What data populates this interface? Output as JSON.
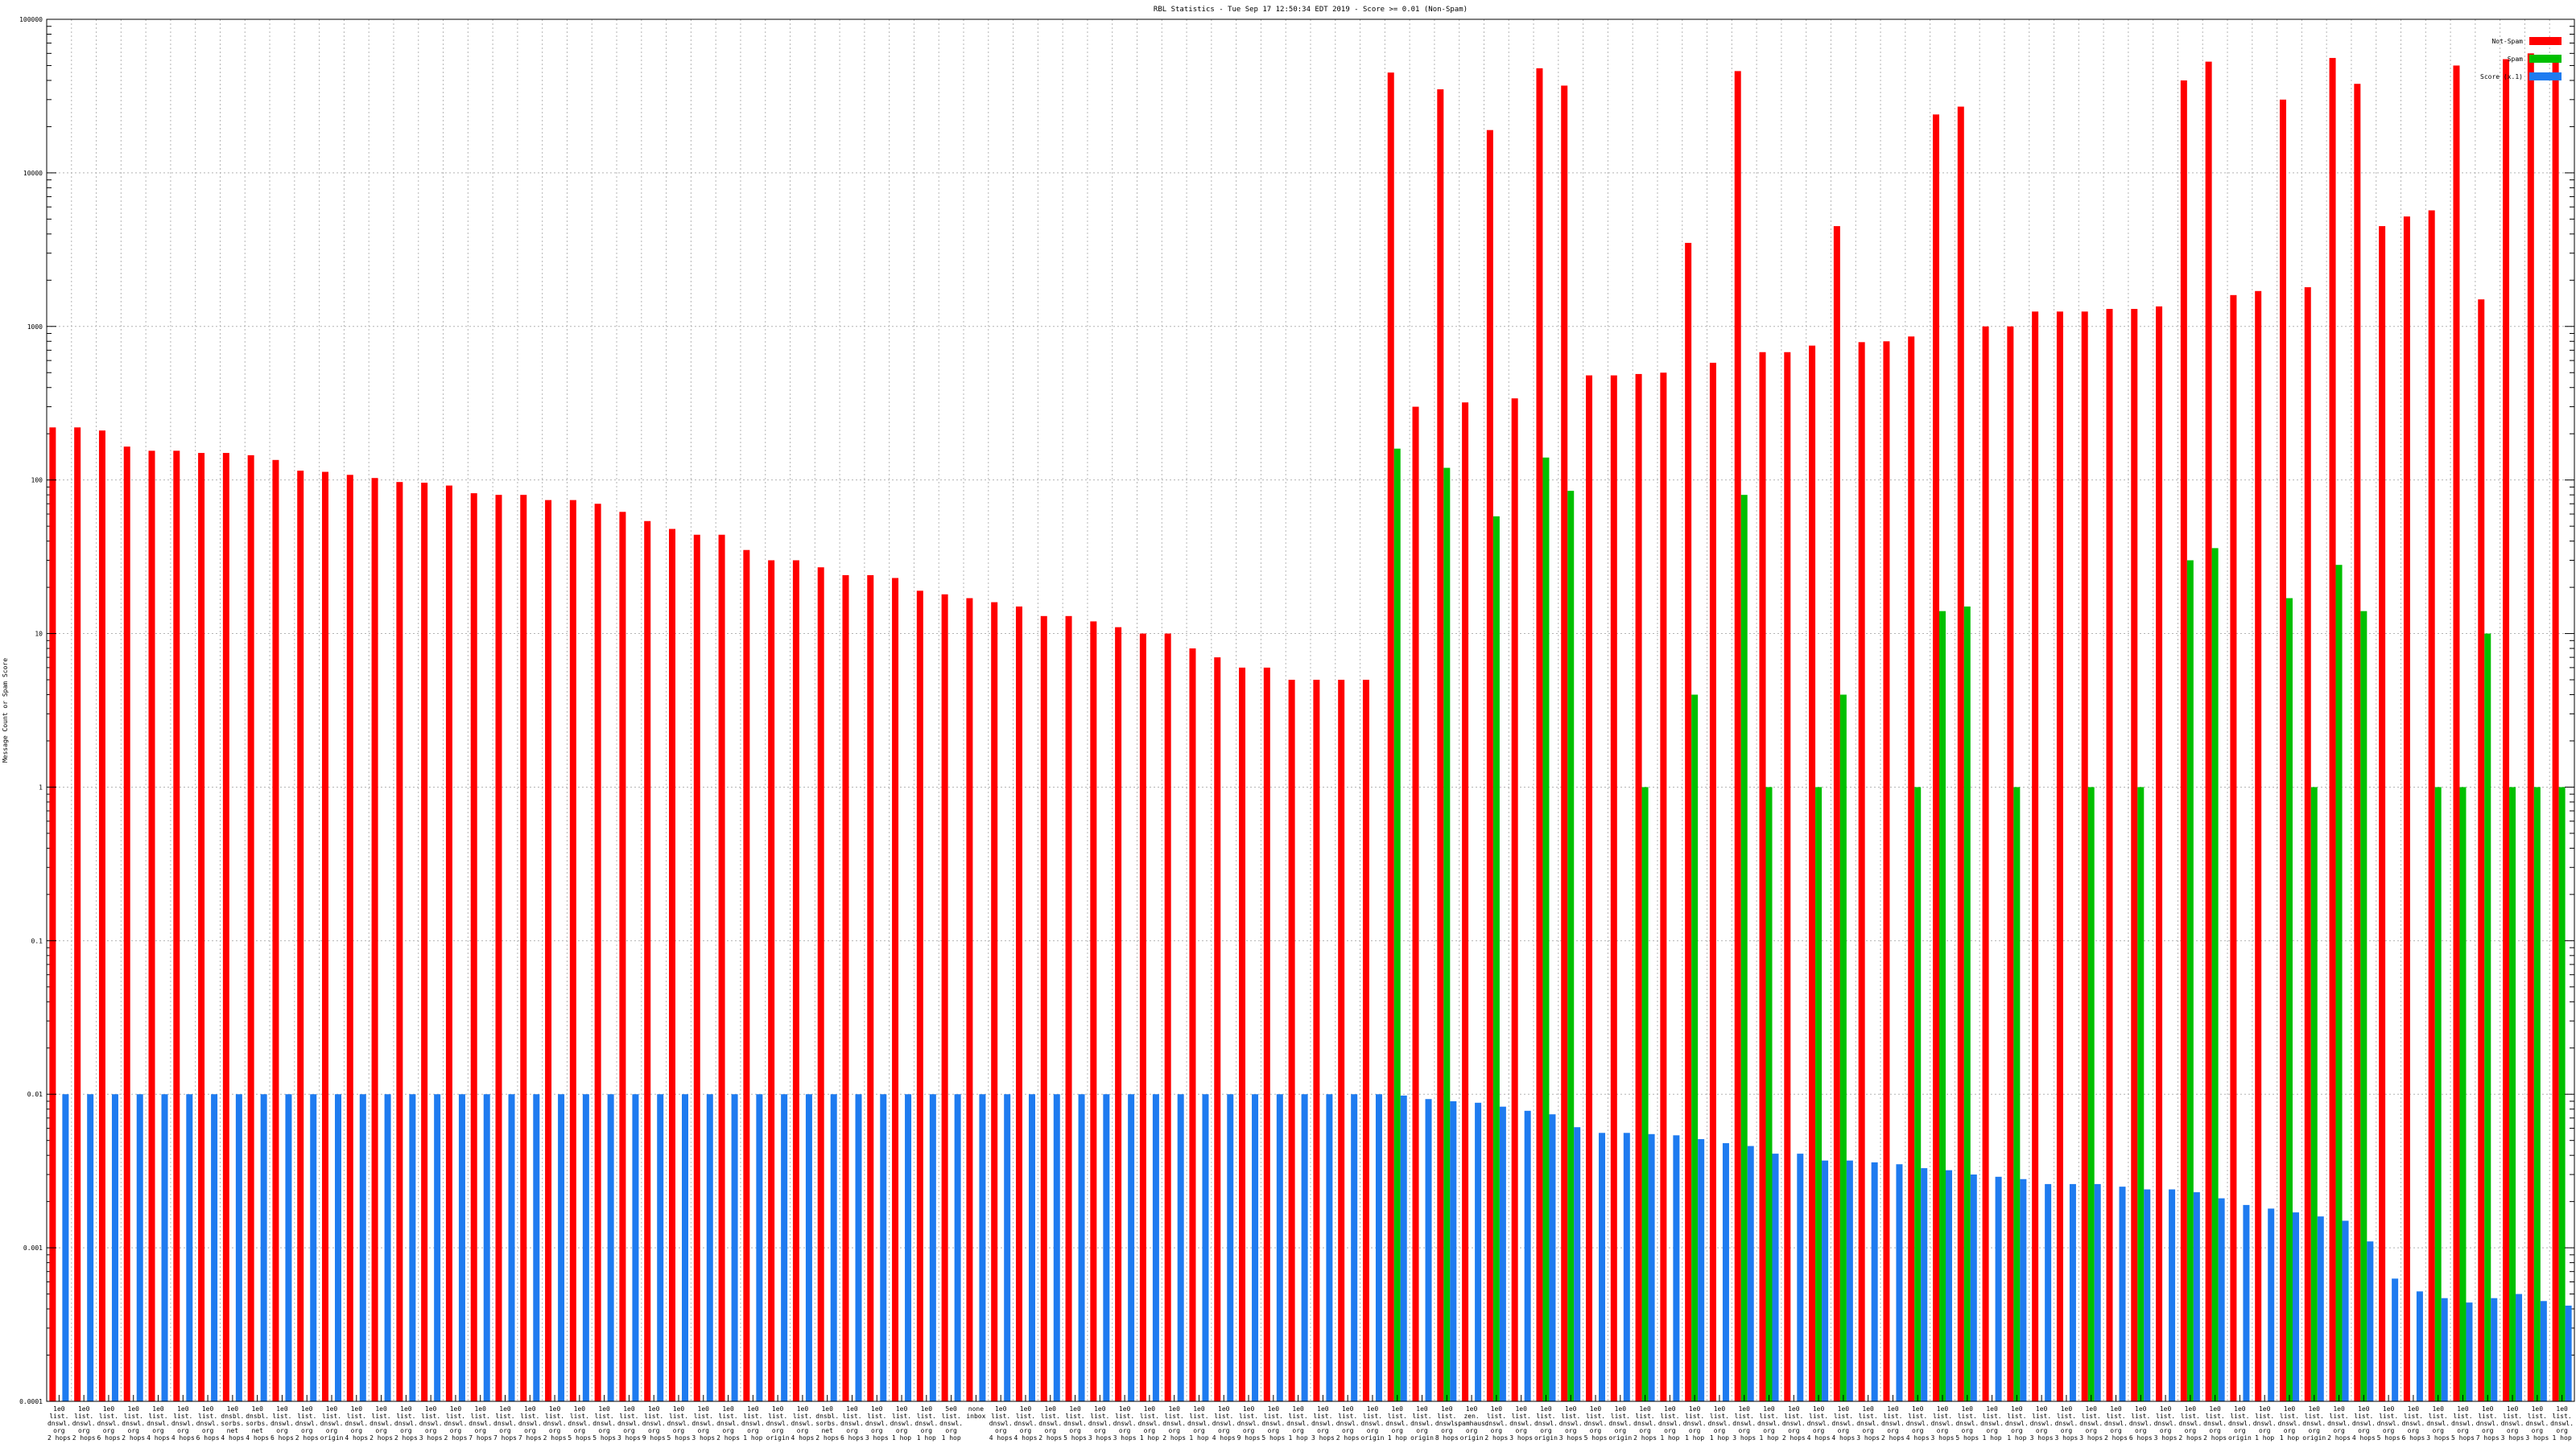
{
  "chart_data": {
    "type": "bar",
    "title": "RBL Statistics - Tue Sep 17 12:50:34 EDT 2019 - Score >= 0.01 (Non-Spam)",
    "xlabel": "",
    "ylabel": "Message Count or Spam Score",
    "yscale": "log",
    "ylim": [
      0.0001,
      100000
    ],
    "yticks": [
      0.0001,
      0.001,
      0.01,
      0.1,
      1,
      10,
      100,
      1000,
      10000,
      100000
    ],
    "ytick_labels": [
      "0.0001",
      "0.001",
      "0.01",
      "0.1",
      "1",
      "10",
      "100",
      "1000",
      "10000",
      "100000"
    ],
    "grid": true,
    "legend_position": "top-right",
    "colors": {
      "Not-Spam": "#ff0000",
      "Spam": "#00c000",
      "Score": "#1e7bf0"
    },
    "series_names": [
      "Not-Spam",
      "Spam",
      "Score (x.1)"
    ],
    "categories": [
      "1e0 list. dnswl. org 2 hops",
      "1e0 list. dnswl. org 2 hops",
      "1e0 list. dnswl. org 6 hops",
      "1e0 list. dnswl. org 2 hops",
      "1e0 list. dnswl. org 4 hops",
      "1e0 list. dnswl. org 4 hops",
      "1e0 list. dnswl. org 6 hops",
      "1e0 dnsbl. sorbs. net 4 hops",
      "1e0 dnsbl. sorbs. net 4 hops",
      "1e0 list. dnswl. org 6 hops",
      "1e0 list. dnswl. org 2 hops",
      "1e0 list. dnswl. org origin",
      "1e0 list. dnswl. org 4 hops",
      "1e0 list. dnswl. org 2 hops",
      "1e0 list. dnswl. org 2 hops",
      "1e0 list. dnswl. org 3 hops",
      "1e0 list. dnswl. org 2 hops",
      "1e0 list. dnswl. org 7 hops",
      "1e0 list. dnswl. org 7 hops",
      "1e0 list. dnswl. org 7 hops",
      "1e0 list. dnswl. org 2 hops",
      "1e0 list. dnswl. org 5 hops",
      "1e0 list. dnswl. org 5 hops",
      "1e0 list. dnswl. org 3 hops",
      "1e0 list. dnswl. org 9 hops",
      "1e0 list. dnswl. org 5 hops",
      "1e0 list. dnswl. org 3 hops",
      "1e0 list. dnswl. org 2 hops",
      "1e0 list. dnswl. org 1 hop",
      "1e0 list. dnswl. org origin",
      "1e0 list. dnswl. org 4 hops",
      "1e0 dnsbl. sorbs. net 2 hops",
      "1e0 list. dnswl. org 6 hops",
      "1e0 list. dnswl. org 3 hops",
      "1e0 list. dnswl. org 1 hop",
      "1e0 list. dnswl. org 1 hop",
      "5e0 list. dnswl. org 1 hop",
      "none inbox",
      "1e0 list. dnswl. org 4 hops",
      "1e0 list. dnswl. org 4 hops",
      "1e0 list. dnswl. org 2 hops",
      "1e0 list. dnswl. org 5 hops",
      "1e0 list. dnswl. org 3 hops",
      "1e0 list. dnswl. org 3 hops",
      "1e0 list. dnswl. org 1 hop",
      "1e0 list. dnswl. org 2 hops",
      "1e0 list. dnswl. org 1 hop",
      "1e0 list. dnswl. org 4 hops",
      "1e0 list. dnswl. org 9 hops",
      "1e0 list. dnswl. org 5 hops",
      "1e0 list. dnswl. org 1 hop",
      "1e0 list. dnswl. org 3 hops",
      "1e0 list. dnswl. org 2 hops",
      "1e0 list. dnswl. org origin",
      "1e0 list. dnswl. org 1 hop",
      "1e0 list. dnswl. org origin",
      "1e0 list. dnswl. org 8 hops",
      "1e0 zen. spamhaus. org origin",
      "1e0 list. dnswl. org 2 hops",
      "1e0 list. dnswl. org 3 hops",
      "1e0 list. dnswl. org origin",
      "1e0 list. dnswl. org 3 hops",
      "1e0 list. dnswl. org 5 hops",
      "1e0 list. dnswl. org origin",
      "1e0 list. dnswl. org 2 hops",
      "1e0 list. dnswl. org 1 hop",
      "1e0 list. dnswl. org 1 hop",
      "1e0 list. dnswl. org 1 hop",
      "1e0 list. dnswl. org 3 hops",
      "1e0 list. dnswl. org 1 hop",
      "1e0 list. dnswl. org 2 hops",
      "1e0 list. dnswl. org 4 hops",
      "1e0 list. dnswl. org 4 hops",
      "1e0 list. dnswl. org 3 hops",
      "1e0 list. dnswl. org 2 hops",
      "1e0 list. dnswl. org 4 hops",
      "1e0 list. dnswl. org 3 hops",
      "1e0 list. dnswl. org 5 hops",
      "1e0 list. dnswl. org 1 hop",
      "1e0 list. dnswl. org 1 hop",
      "1e0 list. dnswl. org 3 hops",
      "1e0 list. dnswl. org 3 hops",
      "1e0 list. dnswl. org 3 hops",
      "1e0 list. dnswl. org 2 hops",
      "1e0 list. dnswl. org 6 hops",
      "1e0 list. dnswl. org 3 hops",
      "1e0 list. dnswl. org 2 hops",
      "1e0 list. dnswl. org 2 hops",
      "1e0 list. dnswl. org origin",
      "1e0 list. dnswl. org 1 hop",
      "1e0 list. dnswl. org 1 hop",
      "1e0 list. dnswl. org origin",
      "1e0 list. dnswl. org 2 hops",
      "1e0 list. dnswl. org 4 hops",
      "1e0 list. dnswl. org 5 hops",
      "1e0 list. dnswl. org 6 hops",
      "1e0 list. dnswl. org 3 hops",
      "1e0 list. dnswl. org 5 hops",
      "1e0 list. dnswl. org 7 hops",
      "1e0 list. dnswl. org 3 hops",
      "1e0 list. dnswl. org 3 hops",
      "1e0 list. dnswl. org 1 hop"
    ],
    "series": [
      {
        "name": "Not-Spam",
        "values": [
          220,
          220,
          210,
          165,
          155,
          155,
          150,
          150,
          145,
          135,
          115,
          113,
          108,
          103,
          97,
          96,
          92,
          82,
          80,
          80,
          74,
          74,
          70,
          62,
          54,
          48,
          44,
          44,
          35,
          30,
          30,
          27,
          24,
          24,
          23,
          19,
          18,
          17,
          16,
          15,
          13,
          13,
          12,
          11,
          10,
          10,
          8,
          7,
          6,
          6,
          5,
          5,
          5,
          5,
          45000,
          300,
          35000,
          320,
          19000,
          340,
          48000,
          37000,
          480,
          480,
          490,
          500,
          3500,
          580,
          46000,
          680,
          680,
          750,
          4500,
          790,
          800,
          860,
          24000,
          27000,
          1000,
          1000,
          1250,
          1250,
          1250,
          1300,
          1300,
          1350,
          40000,
          53000,
          1600,
          1700,
          30000,
          1800,
          56000,
          38000,
          4500,
          5200,
          5700,
          50000,
          1500,
          55000,
          60000,
          58000
        ]
      },
      {
        "name": "Spam",
        "values": [
          null,
          null,
          null,
          null,
          null,
          null,
          null,
          null,
          null,
          null,
          null,
          null,
          null,
          null,
          null,
          null,
          null,
          null,
          null,
          null,
          null,
          null,
          null,
          null,
          null,
          null,
          null,
          null,
          null,
          null,
          null,
          null,
          null,
          null,
          null,
          null,
          null,
          null,
          null,
          null,
          null,
          null,
          null,
          null,
          null,
          null,
          null,
          null,
          null,
          null,
          null,
          null,
          null,
          null,
          160,
          null,
          120,
          null,
          58,
          null,
          140,
          85,
          null,
          null,
          1,
          null,
          4,
          null,
          80,
          1,
          null,
          1,
          4,
          null,
          null,
          1,
          14,
          15,
          null,
          1,
          null,
          null,
          1,
          null,
          1,
          null,
          30,
          36,
          null,
          null,
          17,
          1,
          28,
          14,
          null,
          null,
          1,
          1,
          10,
          1,
          1,
          1
        ]
      },
      {
        "name": "Score (x.1)",
        "values": [
          0.01,
          0.01,
          0.01,
          0.01,
          0.01,
          0.01,
          0.01,
          0.01,
          0.01,
          0.01,
          0.01,
          0.01,
          0.01,
          0.01,
          0.01,
          0.01,
          0.01,
          0.01,
          0.01,
          0.01,
          0.01,
          0.01,
          0.01,
          0.01,
          0.01,
          0.01,
          0.01,
          0.01,
          0.01,
          0.01,
          0.01,
          0.01,
          0.01,
          0.01,
          0.01,
          0.01,
          0.01,
          0.01,
          0.01,
          0.01,
          0.01,
          0.01,
          0.01,
          0.01,
          0.01,
          0.01,
          0.01,
          0.01,
          0.01,
          0.01,
          0.01,
          0.01,
          0.01,
          0.01,
          0.0098,
          0.0093,
          0.009,
          0.0088,
          0.0083,
          0.0078,
          0.0074,
          0.0061,
          0.0056,
          0.0056,
          0.0055,
          0.0054,
          0.0051,
          0.0048,
          0.0046,
          0.0041,
          0.0041,
          0.0037,
          0.0037,
          0.0036,
          0.0035,
          0.0033,
          0.0032,
          0.003,
          0.0029,
          0.0028,
          0.0026,
          0.0026,
          0.0026,
          0.0025,
          0.0024,
          0.0024,
          0.0023,
          0.0021,
          0.0019,
          0.0018,
          0.0017,
          0.0016,
          0.0015,
          0.0011,
          0.00063,
          0.00052,
          0.00047,
          0.00044,
          0.00047,
          0.0005,
          0.00045,
          0.00042
        ]
      }
    ]
  }
}
